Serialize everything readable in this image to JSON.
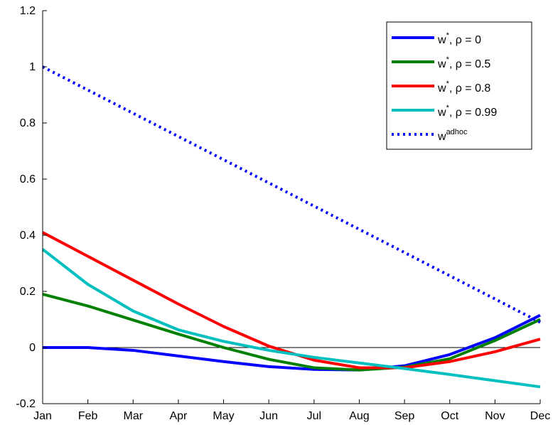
{
  "chart_data": {
    "type": "line",
    "title": "",
    "xlabel": "",
    "ylabel": "",
    "categories": [
      "Jan",
      "Feb",
      "Mar",
      "Apr",
      "May",
      "Jun",
      "Jul",
      "Aug",
      "Sep",
      "Oct",
      "Nov",
      "Dec"
    ],
    "ylim": [
      -0.2,
      1.2
    ],
    "yticks": [
      -0.2,
      0,
      0.2,
      0.4,
      0.6,
      0.8,
      1,
      1.2
    ],
    "ytick_labels": [
      "-0.2",
      "0",
      "0.2",
      "0.4",
      "0.6",
      "0.8",
      "1",
      "1.2"
    ],
    "grid": false,
    "zero_line": true,
    "legend_position": "top-right",
    "series": [
      {
        "name": "w*, ρ = 0",
        "legend_base": "w",
        "legend_sup": "*",
        "legend_rest": ", ρ = 0",
        "color": "#0000ff",
        "style": "solid",
        "values": [
          0.0,
          0.0,
          -0.01,
          -0.03,
          -0.05,
          -0.068,
          -0.078,
          -0.08,
          -0.065,
          -0.025,
          0.035,
          0.115
        ]
      },
      {
        "name": "w*, ρ = 0.5",
        "legend_base": "w",
        "legend_sup": "*",
        "legend_rest": ", ρ = 0.5",
        "color": "#008000",
        "style": "solid",
        "values": [
          0.19,
          0.148,
          0.098,
          0.048,
          0.0,
          -0.042,
          -0.072,
          -0.08,
          -0.07,
          -0.04,
          0.025,
          0.1
        ]
      },
      {
        "name": "w*, ρ = 0.8",
        "legend_base": "w",
        "legend_sup": "*",
        "legend_rest": ", ρ = 0.8",
        "color": "#ff0000",
        "style": "solid",
        "values": [
          0.41,
          0.325,
          0.24,
          0.155,
          0.075,
          0.005,
          -0.045,
          -0.072,
          -0.072,
          -0.05,
          -0.015,
          0.03
        ]
      },
      {
        "name": "w*, ρ = 0.99",
        "legend_base": "w",
        "legend_sup": "*",
        "legend_rest": ", ρ = 0.99",
        "color": "#00bfbf",
        "style": "solid",
        "values": [
          0.35,
          0.225,
          0.13,
          0.063,
          0.022,
          -0.01,
          -0.035,
          -0.055,
          -0.075,
          -0.096,
          -0.118,
          -0.14
        ]
      },
      {
        "name": "w^adhoc",
        "legend_base": "w",
        "legend_sup": "adhoc",
        "legend_rest": "",
        "color": "#0000ff",
        "style": "dotted",
        "values": [
          1.0,
          0.9173,
          0.8346,
          0.7519,
          0.6692,
          0.5865,
          0.5038,
          0.4211,
          0.3384,
          0.2557,
          0.173,
          0.09
        ]
      }
    ]
  }
}
